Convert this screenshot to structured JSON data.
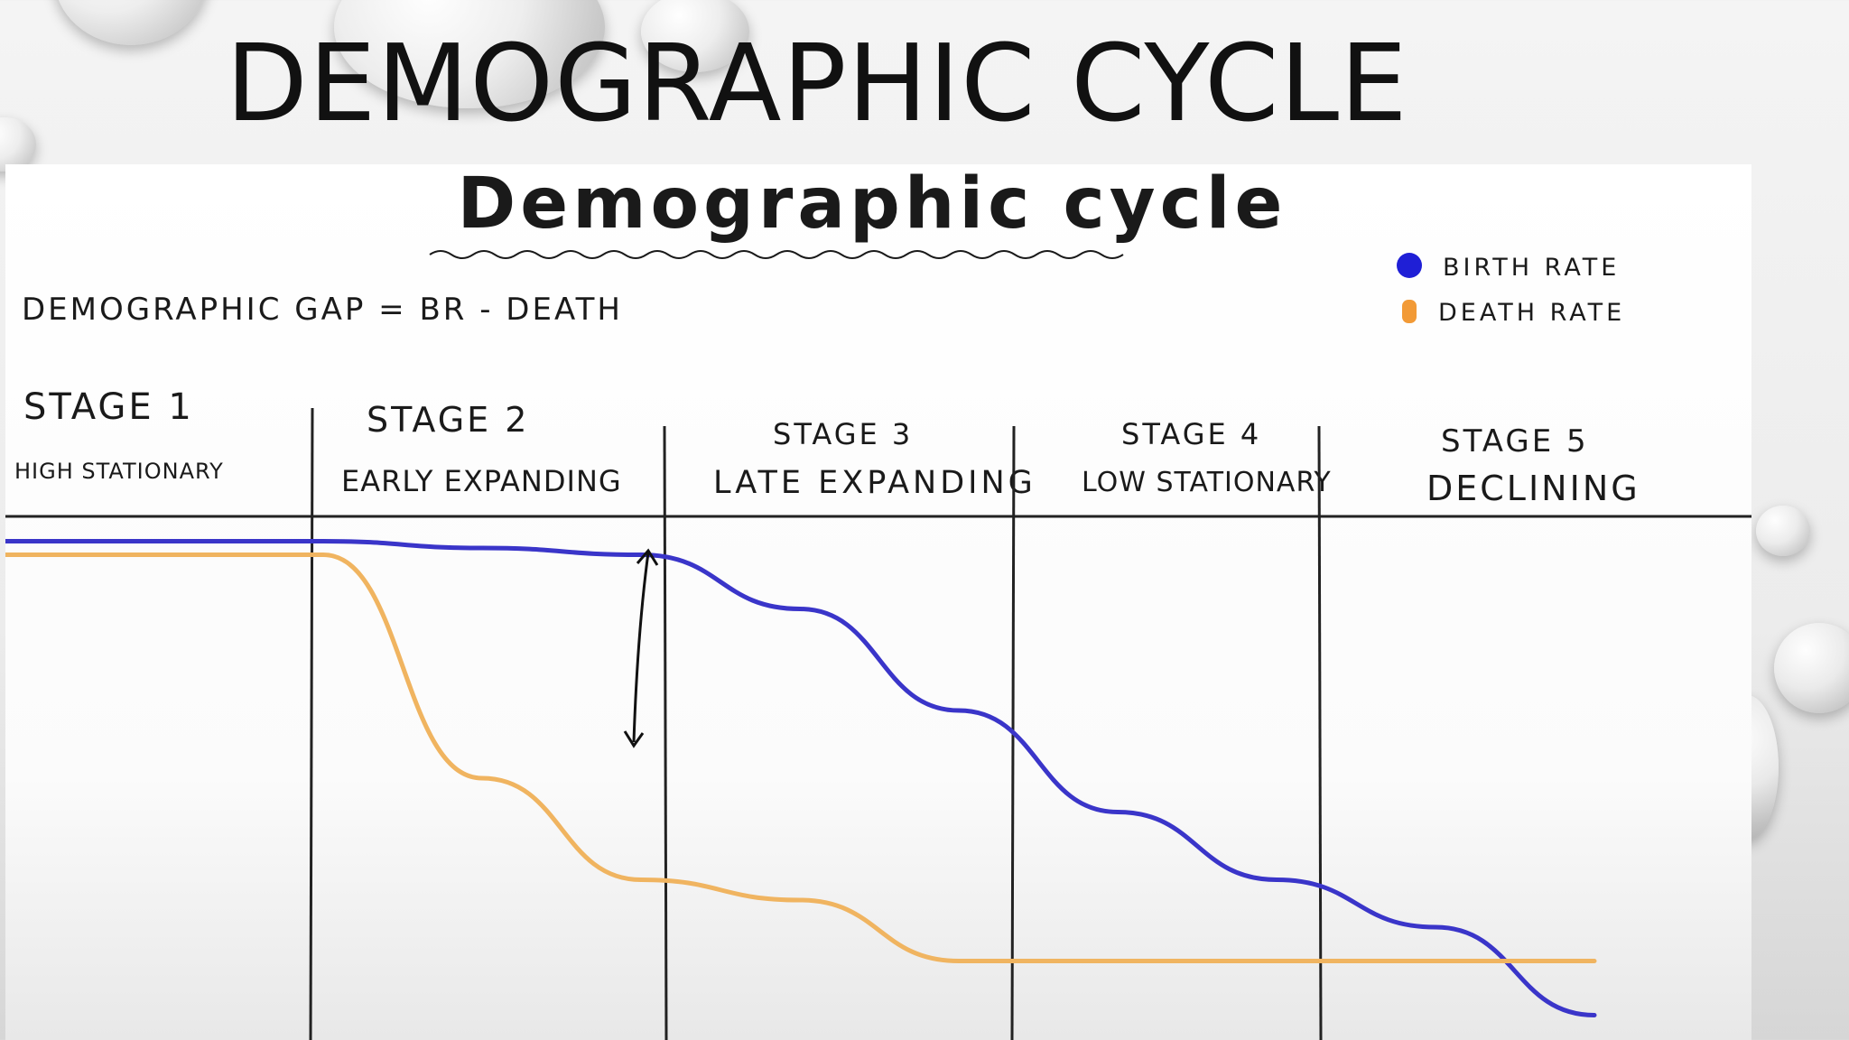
{
  "slide": {
    "title": "DEMOGRAPHIC CYCLE"
  },
  "chart_data": {
    "type": "line",
    "title": "Demographic cycle",
    "subtitle": "DEMOGRAPHIC GAP = BR - DEATH",
    "x": [
      0,
      0.5,
      1.0,
      1.5,
      2.0,
      2.5,
      3.0,
      3.5,
      4.0,
      4.5,
      5.0
    ],
    "series": [
      {
        "name": "BIRTH RATE",
        "color": "#3a35c9",
        "values": [
          95,
          95,
          95,
          94,
          93,
          85,
          70,
          55,
          45,
          38,
          25
        ]
      },
      {
        "name": "DEATH RATE",
        "color": "#f0b460",
        "values": [
          93,
          93,
          93,
          60,
          45,
          42,
          33,
          33,
          33,
          33,
          33
        ]
      }
    ],
    "ylim": [
      0,
      100
    ],
    "stages": [
      {
        "label": "STAGE 1",
        "name": "HIGH STATIONARY"
      },
      {
        "label": "STAGE 2",
        "name": "EARLY EXPANDING"
      },
      {
        "label": "STAGE 3",
        "name": "LATE EXPANDING"
      },
      {
        "label": "STAGE 4",
        "name": "LOW STATIONARY"
      },
      {
        "label": "STAGE 5",
        "name": "DECLINING"
      }
    ],
    "grid": false,
    "legend": "top-right"
  }
}
